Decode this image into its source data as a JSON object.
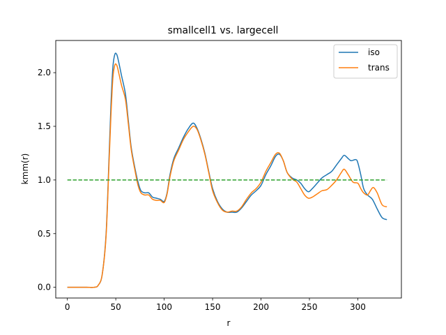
{
  "chart_data": {
    "type": "line",
    "title": "smallcell1 vs. largecell",
    "xlabel": "r",
    "ylabel": "kmm(r)",
    "xlim": [
      -12,
      345
    ],
    "ylim": [
      -0.1,
      2.3
    ],
    "xticks": [
      0,
      50,
      100,
      150,
      200,
      250,
      300
    ],
    "yticks": [
      0.0,
      0.5,
      1.0,
      1.5,
      2.0
    ],
    "ytick_labels": [
      "0.0",
      "0.5",
      "1.0",
      "1.5",
      "2.0"
    ],
    "grid": false,
    "legend_position": "top-right",
    "series": [
      {
        "name": "iso",
        "color": "#1f77b4",
        "style": "solid",
        "points": [
          [
            0,
            0
          ],
          [
            10,
            0
          ],
          [
            20,
            0
          ],
          [
            28,
            0
          ],
          [
            32,
            0.02
          ],
          [
            36,
            0.12
          ],
          [
            40,
            0.5
          ],
          [
            43,
            1.2
          ],
          [
            45,
            1.7
          ],
          [
            47,
            2.05
          ],
          [
            49,
            2.17
          ],
          [
            51,
            2.17
          ],
          [
            53,
            2.1
          ],
          [
            56,
            1.97
          ],
          [
            60,
            1.8
          ],
          [
            63,
            1.55
          ],
          [
            66,
            1.3
          ],
          [
            70,
            1.1
          ],
          [
            73,
            0.98
          ],
          [
            76,
            0.9
          ],
          [
            80,
            0.88
          ],
          [
            84,
            0.88
          ],
          [
            88,
            0.84
          ],
          [
            92,
            0.83
          ],
          [
            96,
            0.82
          ],
          [
            100,
            0.8
          ],
          [
            103,
            0.88
          ],
          [
            106,
            1.05
          ],
          [
            110,
            1.2
          ],
          [
            115,
            1.3
          ],
          [
            120,
            1.4
          ],
          [
            125,
            1.48
          ],
          [
            130,
            1.53
          ],
          [
            134,
            1.48
          ],
          [
            138,
            1.38
          ],
          [
            142,
            1.25
          ],
          [
            146,
            1.08
          ],
          [
            150,
            0.92
          ],
          [
            155,
            0.8
          ],
          [
            160,
            0.73
          ],
          [
            165,
            0.7
          ],
          [
            170,
            0.7
          ],
          [
            175,
            0.7
          ],
          [
            180,
            0.74
          ],
          [
            185,
            0.8
          ],
          [
            190,
            0.86
          ],
          [
            195,
            0.9
          ],
          [
            200,
            0.95
          ],
          [
            205,
            1.05
          ],
          [
            210,
            1.13
          ],
          [
            215,
            1.22
          ],
          [
            219,
            1.24
          ],
          [
            223,
            1.18
          ],
          [
            227,
            1.07
          ],
          [
            232,
            1.02
          ],
          [
            237,
            1.0
          ],
          [
            241,
            0.97
          ],
          [
            245,
            0.92
          ],
          [
            249,
            0.89
          ],
          [
            253,
            0.92
          ],
          [
            258,
            0.97
          ],
          [
            263,
            1.02
          ],
          [
            268,
            1.05
          ],
          [
            273,
            1.08
          ],
          [
            278,
            1.14
          ],
          [
            283,
            1.2
          ],
          [
            286,
            1.23
          ],
          [
            290,
            1.2
          ],
          [
            293,
            1.18
          ],
          [
            298,
            1.19
          ],
          [
            300,
            1.16
          ],
          [
            303,
            1.05
          ],
          [
            306,
            0.92
          ],
          [
            310,
            0.86
          ],
          [
            315,
            0.82
          ],
          [
            320,
            0.73
          ],
          [
            325,
            0.65
          ],
          [
            330,
            0.63
          ]
        ]
      },
      {
        "name": "trans",
        "color": "#ff7f0e",
        "style": "solid",
        "points": [
          [
            0,
            0
          ],
          [
            10,
            0
          ],
          [
            20,
            0
          ],
          [
            28,
            0
          ],
          [
            32,
            0.02
          ],
          [
            36,
            0.12
          ],
          [
            40,
            0.48
          ],
          [
            43,
            1.15
          ],
          [
            45,
            1.6
          ],
          [
            47,
            1.95
          ],
          [
            49,
            2.07
          ],
          [
            51,
            2.07
          ],
          [
            53,
            2.0
          ],
          [
            56,
            1.88
          ],
          [
            60,
            1.75
          ],
          [
            63,
            1.52
          ],
          [
            66,
            1.28
          ],
          [
            70,
            1.08
          ],
          [
            73,
            0.95
          ],
          [
            76,
            0.88
          ],
          [
            80,
            0.86
          ],
          [
            84,
            0.86
          ],
          [
            88,
            0.82
          ],
          [
            92,
            0.81
          ],
          [
            96,
            0.81
          ],
          [
            100,
            0.79
          ],
          [
            103,
            0.87
          ],
          [
            106,
            1.03
          ],
          [
            110,
            1.18
          ],
          [
            115,
            1.28
          ],
          [
            120,
            1.38
          ],
          [
            125,
            1.45
          ],
          [
            130,
            1.5
          ],
          [
            134,
            1.47
          ],
          [
            138,
            1.37
          ],
          [
            142,
            1.24
          ],
          [
            146,
            1.07
          ],
          [
            150,
            0.9
          ],
          [
            155,
            0.79
          ],
          [
            160,
            0.72
          ],
          [
            165,
            0.7
          ],
          [
            170,
            0.71
          ],
          [
            175,
            0.71
          ],
          [
            180,
            0.75
          ],
          [
            185,
            0.82
          ],
          [
            190,
            0.88
          ],
          [
            195,
            0.92
          ],
          [
            200,
            0.98
          ],
          [
            205,
            1.08
          ],
          [
            210,
            1.16
          ],
          [
            215,
            1.24
          ],
          [
            219,
            1.25
          ],
          [
            223,
            1.18
          ],
          [
            227,
            1.07
          ],
          [
            232,
            1.01
          ],
          [
            237,
            0.98
          ],
          [
            241,
            0.92
          ],
          [
            245,
            0.86
          ],
          [
            249,
            0.83
          ],
          [
            253,
            0.84
          ],
          [
            258,
            0.87
          ],
          [
            263,
            0.9
          ],
          [
            268,
            0.91
          ],
          [
            273,
            0.95
          ],
          [
            278,
            1.0
          ],
          [
            283,
            1.07
          ],
          [
            286,
            1.1
          ],
          [
            290,
            1.05
          ],
          [
            295,
            0.98
          ],
          [
            300,
            0.97
          ],
          [
            303,
            0.92
          ],
          [
            306,
            0.88
          ],
          [
            310,
            0.86
          ],
          [
            313,
            0.9
          ],
          [
            316,
            0.93
          ],
          [
            320,
            0.88
          ],
          [
            325,
            0.77
          ],
          [
            330,
            0.75
          ]
        ]
      },
      {
        "name": "",
        "color": "#2ca02c",
        "style": "dashed",
        "points": [
          [
            0,
            1
          ],
          [
            330,
            1
          ]
        ]
      }
    ]
  }
}
